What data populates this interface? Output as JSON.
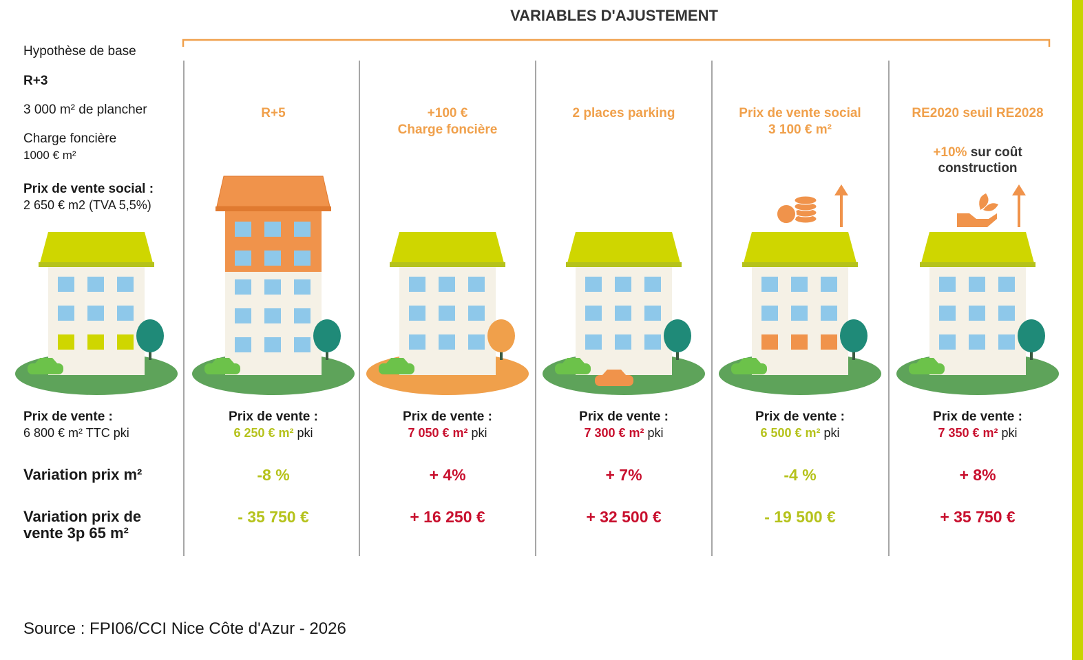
{
  "header": {
    "title": "VARIABLES D'AJUSTEMENT"
  },
  "base": {
    "label": "Hypothèse de base",
    "floors": "R+3",
    "surface": "3 000 m² de plancher",
    "land_cost": {
      "label": "Charge foncière",
      "value": "1000 € m²"
    },
    "social_price": {
      "label": "Prix de vente social :",
      "value": "2 650 € m2 (TVA 5,5%)"
    },
    "price": {
      "label": "Prix de vente :",
      "value": "6 800 € m² TTC pki"
    }
  },
  "row_labels": {
    "variation_m2": "Variation prix m²",
    "variation_sale": "Variation prix de vente 3p 65 m²"
  },
  "scenarios": [
    {
      "title": [
        "R+5"
      ],
      "price_label": "Prix de vente :",
      "price": "6 250 € m²",
      "unit": "pki",
      "variation_m2": "-8 %",
      "variation_sale": "- 35 750 €",
      "tone": "down"
    },
    {
      "title": [
        "+100 €",
        "Charge foncière"
      ],
      "price_label": "Prix de vente :",
      "price": "7 050 € m²",
      "unit": "pki",
      "variation_m2": "+ 4%",
      "variation_sale": "+ 16 250 €",
      "tone": "up"
    },
    {
      "title": [
        "2 places parking"
      ],
      "price_label": "Prix de vente :",
      "price": "7 300 € m²",
      "unit": "pki",
      "variation_m2": "+ 7%",
      "variation_sale": "+ 32 500 €",
      "tone": "up"
    },
    {
      "title": [
        "Prix de vente social",
        "3 100 € m²"
      ],
      "price_label": "Prix de vente :",
      "price": "6 500 € m²",
      "unit": "pki",
      "variation_m2": "-4 %",
      "variation_sale": "- 19 500 €",
      "tone": "down"
    },
    {
      "title": [
        "RE2020 seuil RE2028"
      ],
      "note": {
        "highlight": "+10%",
        "text": "sur coût construction"
      },
      "price_label": "Prix de vente :",
      "price": "7 350 € m²",
      "unit": "pki",
      "variation_m2": "+ 8%",
      "variation_sale": "+ 35 750 €",
      "tone": "up"
    }
  ],
  "source": "Source : FPI06/CCI Nice Côte d'Azur - 2026"
}
